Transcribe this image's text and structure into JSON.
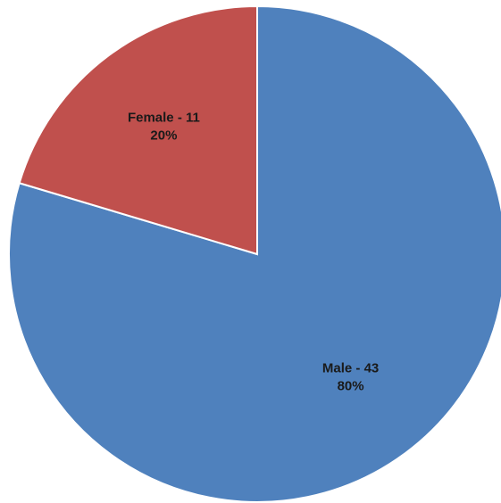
{
  "chart_data": {
    "type": "pie",
    "title": "",
    "start_angle_deg": 0,
    "direction": "clockwise",
    "slices": [
      {
        "name": "Male",
        "value": 43,
        "percent": "80%",
        "label": "Male - 43",
        "color": "#4F81BD"
      },
      {
        "name": "Female",
        "value": 11,
        "percent": "20%",
        "label": "Female - 11",
        "color": "#C0504D"
      }
    ],
    "legend": "none"
  }
}
